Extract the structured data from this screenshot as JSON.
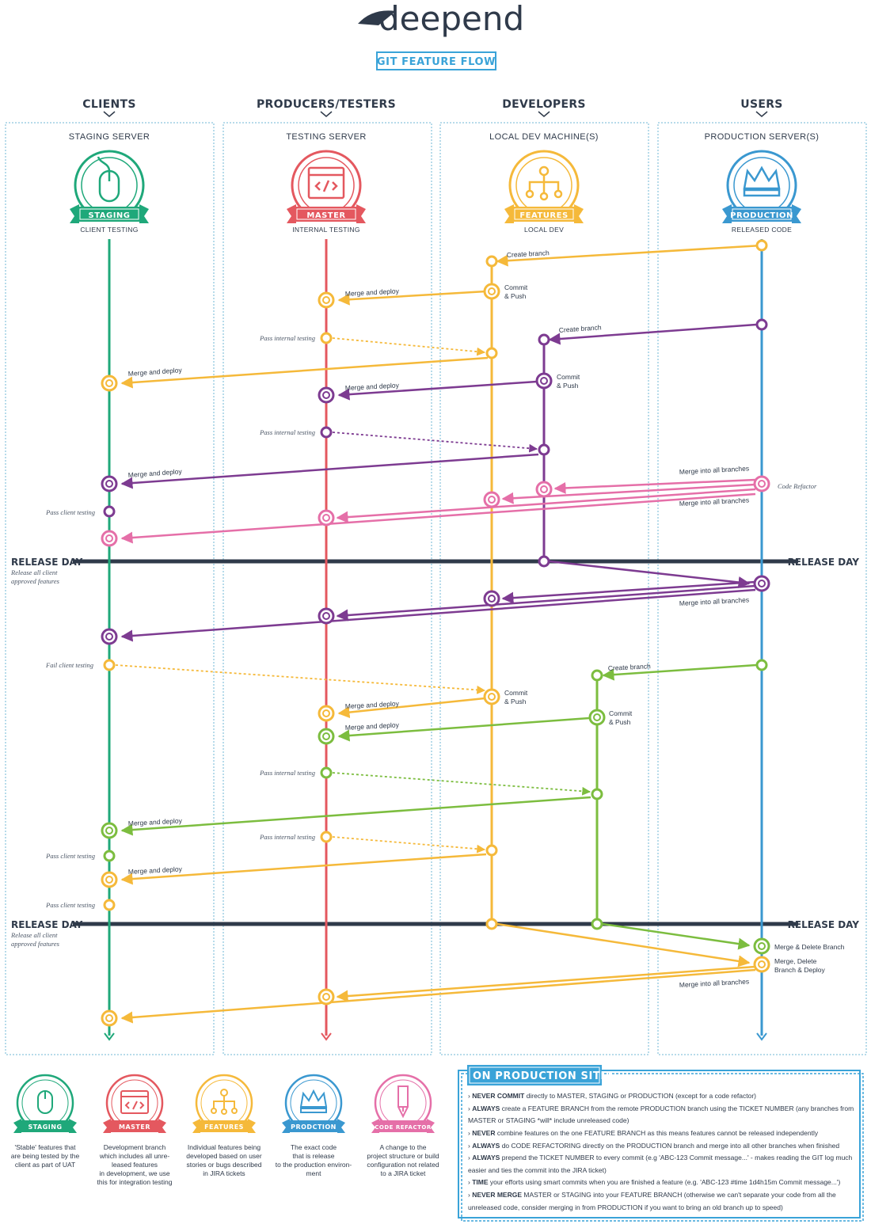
{
  "header": {
    "logo": "deepend",
    "badge": "GIT FEATURE FLOW"
  },
  "colors": {
    "green": "#1fa87a",
    "red": "#e4585f",
    "yellow": "#f5b93a",
    "blue": "#3a98d0",
    "purple": "#7d3b91",
    "pink": "#e56fa8",
    "lime": "#7cbd3f",
    "dark": "#2f3a4a"
  },
  "columns": [
    {
      "header": "CLIENTS",
      "server": "STAGING SERVER",
      "ribbon": "STAGING",
      "subtitle": "CLIENT TESTING",
      "icon": "mouse-icon"
    },
    {
      "header": "PRODUCERS/TESTERS",
      "server": "TESTING SERVER",
      "ribbon": "MASTER",
      "subtitle": "INTERNAL TESTING",
      "icon": "code-window-icon"
    },
    {
      "header": "DEVELOPERS",
      "server": "LOCAL DEV MACHINE(S)",
      "ribbon": "FEATURES",
      "subtitle": "LOCAL DEV",
      "icon": "branch-tree-icon"
    },
    {
      "header": "USERS",
      "server": "PRODUCTION SERVER(S)",
      "ribbon": "PRODUCTION",
      "subtitle": "RELEASED CODE",
      "icon": "crown-icon"
    }
  ],
  "labels": {
    "create_branch": "Create branch",
    "commit": "Commit",
    "and_push": "& Push",
    "merge_and_deploy": "Merge and deploy",
    "pass_internal_testing": "Pass internal testing",
    "pass_client_testing": "Pass client testing",
    "fail_client_testing": "Fail client testing",
    "merge_into_all_branches": "Merge into all branches",
    "code_refactor": "Code Refactor",
    "merge_delete_branch": "Merge & Delete Branch",
    "merge_delete": "Merge, Delete",
    "branch_deploy": "Branch & Deploy"
  },
  "release_day": {
    "label": "RELEASE DAY",
    "note_line1": "Release all client",
    "note_line2": "approved features"
  },
  "legend": [
    {
      "ribbon": "STAGING",
      "icon": "mouse-icon",
      "desc": [
        "'Stable' features that",
        "are being tested by the",
        "client as part of UAT"
      ]
    },
    {
      "ribbon": "MASTER",
      "icon": "code-window-icon",
      "desc": [
        "Development branch",
        "which includes all unre-",
        "leased features",
        "in development, we use",
        "this for integration testing"
      ]
    },
    {
      "ribbon": "FEATURES",
      "icon": "branch-tree-icon",
      "desc": [
        "Individual features being",
        "developed based on user",
        "stories or bugs described",
        "in JIRA tickets"
      ]
    },
    {
      "ribbon": "PRODCTION",
      "icon": "crown-icon",
      "desc": [
        "The exact code",
        "that is release",
        "to the production environ-",
        "ment"
      ]
    },
    {
      "ribbon": "CODE REFACTOR",
      "icon": "pencil-icon",
      "desc": [
        "A change to the",
        "project structure or build",
        "configuration not related",
        "to a JIRA ticket"
      ]
    }
  ],
  "rules": {
    "title": "ON PRODUCTION SITES",
    "items": [
      {
        "bold": "NEVER COMMIT",
        "text": " directly to MASTER, STAGING or PRODUCTION (except for a code refactor)"
      },
      {
        "bold": "ALWAYS",
        "text": " create a FEATURE BRANCH from the remote PRODUCTION branch using the TICKET NUMBER (any branches from"
      },
      {
        "bold": "",
        "text": "MASTER or STAGING *will* include unreleased code)"
      },
      {
        "bold": "NEVER",
        "text": " combine features on the one FEATURE BRANCH as this means features cannot be released independently"
      },
      {
        "bold": "ALWAYS",
        "text": " do CODE REFACTORING directly on the PRODUCTION branch and merge into all other branches when finished"
      },
      {
        "bold": "ALWAYS",
        "text": " prepend the TICKET NUMBER to every commit (e.g 'ABC-123 Commit message...' - makes reading the GIT log much"
      },
      {
        "bold": "",
        "text": "easier and ties the commit into the JIRA ticket)"
      },
      {
        "bold": "TIME",
        "text": " your efforts using smart commits when you are finished a feature (e.g. 'ABC-123 #time 1d4h15m Commit message...')"
      },
      {
        "bold": "NEVER MERGE",
        "text": " MASTER or STAGING into your FEATURE BRANCH (otherwise we can't separate your code from all the"
      },
      {
        "bold": "",
        "text": "unreleased code, consider merging in from PRODUCTION if you want to bring an old branch up to speed)"
      }
    ]
  }
}
